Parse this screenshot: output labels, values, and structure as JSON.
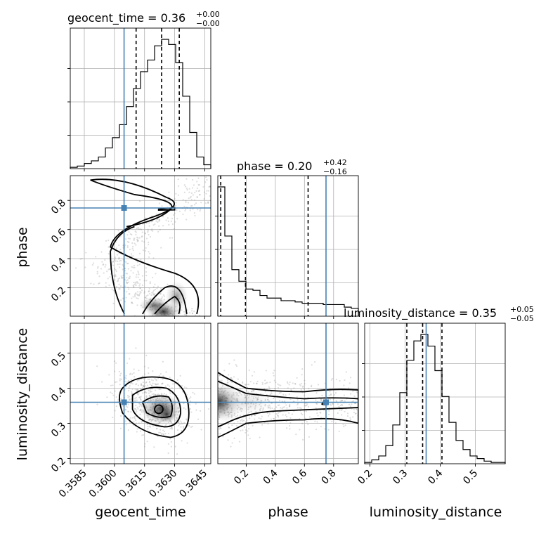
{
  "chart_data": {
    "type": "corner",
    "parameters": [
      "geocent_time",
      "phase",
      "luminosity_distance"
    ],
    "titles": [
      {
        "param": "geocent_time",
        "label": "geocent_time = 0.36",
        "plus": "+0.00",
        "minus": "−0.00"
      },
      {
        "param": "phase",
        "label": "phase = 0.20",
        "plus": "+0.42",
        "minus": "−0.16"
      },
      {
        "param": "luminosity_distance",
        "label": "luminosity_distance = 0.35",
        "plus": "+0.05",
        "minus": "−0.05"
      }
    ],
    "axes": {
      "geocent_time": {
        "range": [
          0.3578,
          0.3648
        ],
        "ticks": [
          0.3585,
          0.36,
          0.3615,
          0.363,
          0.3645
        ],
        "tick_labels": [
          "0.3585",
          "0.3600",
          "0.3615",
          "0.3630",
          "0.3645"
        ]
      },
      "phase": {
        "range": [
          0.005,
          0.97
        ],
        "ticks": [
          0.2,
          0.4,
          0.6,
          0.8
        ],
        "tick_labels": [
          "0.2",
          "0.4",
          "0.6",
          "0.8"
        ]
      },
      "luminosity_distance": {
        "range": [
          0.185,
          0.585
        ],
        "ticks": [
          0.2,
          0.3,
          0.4,
          0.5
        ],
        "tick_labels": [
          "0.2",
          "0.3",
          "0.4",
          "0.5"
        ]
      }
    },
    "truths": {
      "geocent_time": 0.36048,
      "phase": 0.748,
      "luminosity_distance": 0.36
    },
    "quantiles": {
      "geocent_time": [
        0.36108,
        0.36235,
        0.36323
      ],
      "phase": [
        0.025,
        0.195,
        0.625
      ],
      "luminosity_distance": [
        0.305,
        0.35,
        0.405
      ]
    },
    "histograms": {
      "geocent_time": {
        "edges": [
          0.3578,
          0.35815,
          0.3585,
          0.35885,
          0.3592,
          0.35955,
          0.3599,
          0.36025,
          0.3606,
          0.36095,
          0.3613,
          0.36165,
          0.362,
          0.36235,
          0.3627,
          0.36305,
          0.3634,
          0.36375,
          0.3641,
          0.36445,
          0.3648
        ],
        "counts": [
          1,
          2,
          4,
          6,
          9,
          16,
          24,
          34,
          48,
          62,
          75,
          84,
          95,
          100,
          96,
          82,
          56,
          28,
          9,
          3
        ]
      },
      "phase": {
        "edges": [
          0.005,
          0.0532,
          0.1015,
          0.1498,
          0.198,
          0.2462,
          0.2945,
          0.3428,
          0.391,
          0.4392,
          0.4875,
          0.5357,
          0.584,
          0.6323,
          0.6805,
          0.7288,
          0.777,
          0.8253,
          0.8735,
          0.9217,
          0.97
        ],
        "counts": [
          100,
          62,
          36,
          27,
          21,
          20,
          16,
          14,
          14,
          12,
          12,
          11,
          10,
          10,
          10,
          9,
          9,
          9,
          7,
          6
        ]
      },
      "luminosity_distance": {
        "edges": [
          0.185,
          0.205,
          0.225,
          0.245,
          0.265,
          0.285,
          0.305,
          0.325,
          0.345,
          0.365,
          0.385,
          0.405,
          0.425,
          0.445,
          0.465,
          0.485,
          0.505,
          0.525,
          0.545,
          0.565,
          0.585
        ],
        "counts": [
          1,
          3,
          6,
          14,
          30,
          55,
          80,
          95,
          100,
          91,
          72,
          52,
          32,
          18,
          11,
          6,
          4,
          2,
          1,
          1
        ]
      }
    },
    "grid": true
  }
}
